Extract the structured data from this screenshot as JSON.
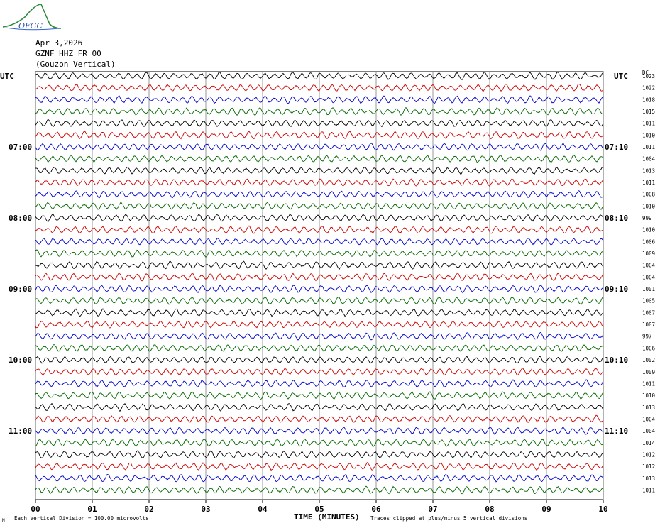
{
  "logo_text": "OFGC",
  "header": {
    "date": "Apr 3,2026",
    "station": "GZNF HHZ FR 00",
    "location": "(Gouzon Vertical)"
  },
  "colors": {
    "trace": [
      "#000000",
      "#cc0000",
      "#0000cc",
      "#006600"
    ],
    "grid": "#808080"
  },
  "chart_data": {
    "type": "line",
    "left_axis_label": "UTC",
    "right_axis_label": "UTC",
    "right_top_label": "DC",
    "xlabel": "TIME (MINUTES)",
    "x_ticks": [
      "00",
      "01",
      "02",
      "03",
      "04",
      "05",
      "06",
      "07",
      "08",
      "09",
      "10"
    ],
    "left_hour_labels": [
      {
        "row": 6,
        "label": "07:00"
      },
      {
        "row": 12,
        "label": "08:00"
      },
      {
        "row": 18,
        "label": "09:00"
      },
      {
        "row": 24,
        "label": "10:00"
      },
      {
        "row": 30,
        "label": "11:00"
      }
    ],
    "right_hour_labels": [
      {
        "row": 6,
        "label": "07:10"
      },
      {
        "row": 12,
        "label": "08:10"
      },
      {
        "row": 18,
        "label": "09:10"
      },
      {
        "row": 24,
        "label": "10:10"
      },
      {
        "row": 30,
        "label": "11:10"
      }
    ],
    "dc_offsets": [
      1023,
      1022,
      1018,
      1015,
      1011,
      1010,
      1011,
      1004,
      1013,
      1011,
      1008,
      1010,
      999,
      1010,
      1006,
      1009,
      1004,
      1004,
      1001,
      1005,
      1007,
      1007,
      997,
      1006,
      1002,
      1009,
      1011,
      1010,
      1013,
      1004,
      1004,
      1014,
      1012,
      1012,
      1013,
      1011
    ],
    "footer_scale": "Each Vertical Division =  100.00 microvolts",
    "footer_clip": "Traces clipped at plus/minus 5 vertical divisions",
    "footer_mark": "M"
  }
}
